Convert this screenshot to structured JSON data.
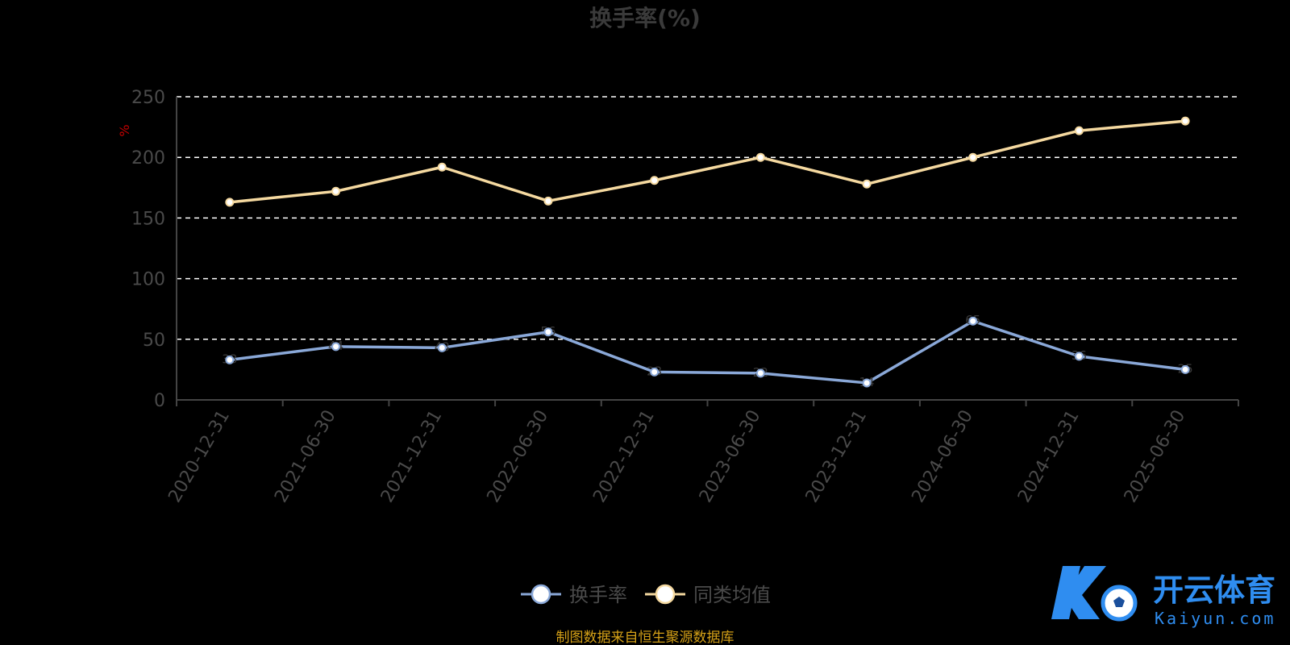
{
  "chart_data": {
    "type": "line",
    "title": "换手率(%)",
    "ylabel": "%",
    "ylim": [
      0,
      250
    ],
    "yticks": [
      0,
      50,
      100,
      150,
      200,
      250
    ],
    "grid": true,
    "legend_position": "bottom",
    "categories": [
      "2020-12-31",
      "2021-06-30",
      "2021-12-31",
      "2022-06-30",
      "2022-12-31",
      "2023-06-30",
      "2023-12-31",
      "2024-06-30",
      "2024-12-31",
      "2025-06-30"
    ],
    "series": [
      {
        "name": "换手率",
        "color": "#8aa8d8",
        "values": [
          33,
          44,
          43,
          56,
          23,
          22,
          14,
          65,
          36,
          25
        ]
      },
      {
        "name": "同类均值",
        "color": "#f5d9a0",
        "values": [
          163,
          172,
          192,
          164,
          181,
          200,
          178,
          200,
          222,
          230
        ]
      }
    ]
  },
  "source_note": "制图数据来自恒生聚源数据库",
  "watermark": {
    "main": "开云体育",
    "sub": "Kaiyun.com"
  },
  "colors": {
    "background": "#000000",
    "grid": "#ffffff",
    "axis": "#444444",
    "source": "#d4a017",
    "watermark": "#2f8df0"
  }
}
